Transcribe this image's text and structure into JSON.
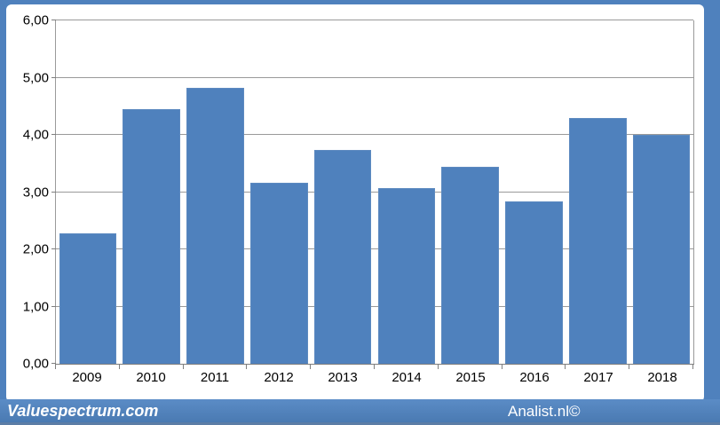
{
  "chart_data": {
    "type": "bar",
    "title": "",
    "xlabel": "",
    "ylabel": "",
    "categories": [
      "2009",
      "2010",
      "2011",
      "2012",
      "2013",
      "2014",
      "2015",
      "2016",
      "2017",
      "2018"
    ],
    "values": [
      2.28,
      4.45,
      4.82,
      3.16,
      3.74,
      3.07,
      3.45,
      2.84,
      4.29,
      4.0
    ],
    "ylim": [
      0,
      6
    ],
    "y_ticks": [
      0,
      1,
      2,
      3,
      4,
      5,
      6
    ],
    "y_tick_labels": [
      "0,00",
      "1,00",
      "2,00",
      "3,00",
      "4,00",
      "5,00",
      "6,00"
    ],
    "grid": true,
    "legend": "none",
    "bar_color": "#4f81bd"
  },
  "footer": {
    "left_text": "Valuespectrum.com",
    "right_text": "Analist.nl©"
  },
  "colors": {
    "frame_blue": "#4f81bd",
    "bar_blue": "#4f81bd",
    "gridline_gray": "#9a9a9a",
    "axis_gray": "#7f7f7f",
    "card_white": "#ffffff",
    "footer_text": "#ffffff",
    "label_black": "#000000"
  }
}
